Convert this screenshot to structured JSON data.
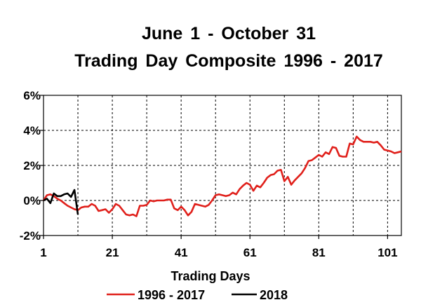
{
  "chart_data": {
    "type": "line",
    "title_line1": "June  1 - October  31",
    "title_line2": "Trading  Day  Composite  1996 - 2017",
    "xlabel": "Trading Days",
    "ylabel": "",
    "xlim": [
      1,
      105
    ],
    "ylim": [
      -2,
      6
    ],
    "x_ticks": [
      1,
      21,
      41,
      61,
      81,
      101
    ],
    "y_ticks": [
      -2,
      0,
      2,
      4,
      6
    ],
    "y_tick_labels": [
      "-2%",
      "0%",
      "2%",
      "4%",
      "6%"
    ],
    "grid": "dashed vertical and horizontal",
    "legend_position": "bottom",
    "series": [
      {
        "name": "1996 - 2017",
        "color": "#e0201b",
        "x": [
          1,
          2,
          3,
          4,
          5,
          6,
          7,
          8,
          9,
          10,
          11,
          12,
          13,
          14,
          15,
          16,
          17,
          18,
          19,
          20,
          21,
          22,
          23,
          24,
          25,
          26,
          27,
          28,
          29,
          30,
          31,
          32,
          33,
          34,
          35,
          36,
          37,
          38,
          39,
          40,
          41,
          42,
          43,
          44,
          45,
          46,
          47,
          48,
          49,
          50,
          51,
          52,
          53,
          54,
          55,
          56,
          57,
          58,
          59,
          60,
          61,
          62,
          63,
          64,
          65,
          66,
          67,
          68,
          69,
          70,
          71,
          72,
          73,
          74,
          75,
          76,
          77,
          78,
          79,
          80,
          81,
          82,
          83,
          84,
          85,
          86,
          87,
          88,
          89,
          90,
          91,
          92,
          93,
          94,
          95,
          96,
          97,
          98,
          99,
          100,
          101,
          102,
          103,
          104,
          105
        ],
        "values": [
          0.0,
          0.3,
          0.35,
          0.25,
          0.1,
          0.0,
          -0.15,
          -0.3,
          -0.4,
          -0.5,
          -0.55,
          -0.4,
          -0.35,
          -0.35,
          -0.2,
          -0.3,
          -0.6,
          -0.55,
          -0.5,
          -0.7,
          -0.5,
          -0.2,
          -0.3,
          -0.55,
          -0.8,
          -0.85,
          -0.8,
          -0.9,
          -0.3,
          -0.3,
          -0.25,
          0.0,
          -0.05,
          0.0,
          0.0,
          0.0,
          0.05,
          0.05,
          -0.45,
          -0.55,
          -0.35,
          -0.55,
          -0.85,
          -0.65,
          -0.2,
          -0.25,
          -0.3,
          -0.35,
          -0.25,
          0.0,
          0.3,
          0.35,
          0.3,
          0.25,
          0.3,
          0.45,
          0.35,
          0.65,
          0.85,
          1.0,
          0.9,
          0.55,
          0.85,
          0.75,
          1.0,
          1.3,
          1.45,
          1.5,
          1.7,
          1.75,
          1.1,
          1.35,
          0.9,
          1.15,
          1.35,
          1.55,
          1.85,
          2.25,
          2.3,
          2.45,
          2.6,
          2.5,
          2.75,
          2.65,
          3.05,
          3.0,
          2.55,
          2.5,
          2.5,
          3.25,
          3.2,
          3.65,
          3.45,
          3.35,
          3.35,
          3.35,
          3.3,
          3.35,
          3.15,
          2.9,
          2.85,
          2.8,
          2.7,
          2.75,
          2.8
        ]
      },
      {
        "name": "2018",
        "color": "#000000",
        "x": [
          1,
          2,
          3,
          4,
          5,
          6,
          7,
          8,
          9,
          10,
          11
        ],
        "values": [
          0.0,
          0.1,
          -0.15,
          0.4,
          0.25,
          0.25,
          0.35,
          0.4,
          0.2,
          0.6,
          -0.8
        ]
      }
    ]
  }
}
